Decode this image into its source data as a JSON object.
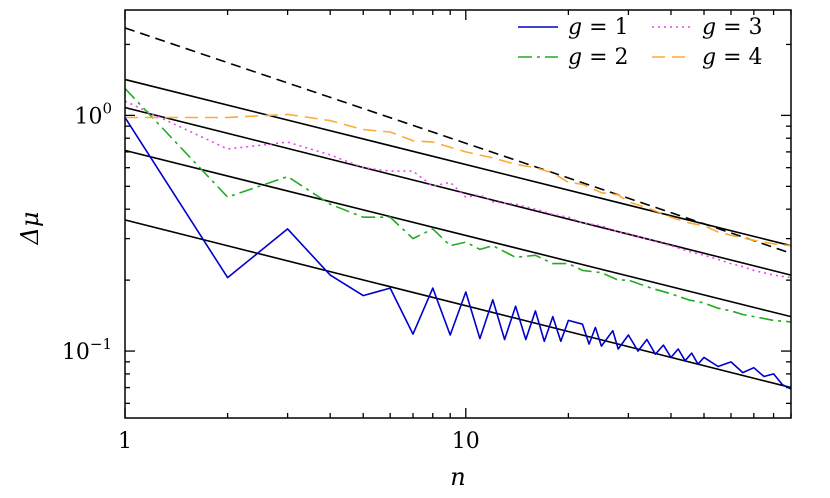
{
  "chart_data": {
    "type": "line",
    "xlabel": "n",
    "ylabel": "Δμ",
    "xscale": "log",
    "yscale": "log",
    "xlim": [
      1,
      90
    ],
    "ylim": [
      0.052,
      2.8
    ],
    "x_ticks": [
      {
        "value": 1,
        "label": "1"
      },
      {
        "value": 10,
        "label": "10"
      }
    ],
    "y_ticks": [
      {
        "value": 0.1,
        "base": "10",
        "exp": "−1"
      },
      {
        "value": 1,
        "base": "10",
        "exp": "0"
      }
    ],
    "grid": false,
    "legend_position": "top-right",
    "series": [
      {
        "name": "g = 1",
        "label_main": "g",
        "label_rest": " = 1",
        "color": "#0000cc",
        "dash": "",
        "points": [
          [
            1,
            0.98
          ],
          [
            2,
            0.205
          ],
          [
            3,
            0.33
          ],
          [
            4,
            0.21
          ],
          [
            5,
            0.172
          ],
          [
            6,
            0.185
          ],
          [
            7,
            0.118
          ],
          [
            8,
            0.185
          ],
          [
            9,
            0.117
          ],
          [
            10,
            0.178
          ],
          [
            11,
            0.113
          ],
          [
            12,
            0.165
          ],
          [
            13,
            0.112
          ],
          [
            14,
            0.155
          ],
          [
            15,
            0.112
          ],
          [
            16,
            0.148
          ],
          [
            17,
            0.11
          ],
          [
            18,
            0.14
          ],
          [
            19,
            0.11
          ],
          [
            20,
            0.135
          ],
          [
            22,
            0.13
          ],
          [
            23,
            0.107
          ],
          [
            24,
            0.126
          ],
          [
            25,
            0.105
          ],
          [
            27,
            0.122
          ],
          [
            28,
            0.102
          ],
          [
            30,
            0.117
          ],
          [
            32,
            0.1
          ],
          [
            34,
            0.112
          ],
          [
            36,
            0.097
          ],
          [
            38,
            0.106
          ],
          [
            40,
            0.094
          ],
          [
            42,
            0.102
          ],
          [
            44,
            0.091
          ],
          [
            46,
            0.098
          ],
          [
            48,
            0.088
          ],
          [
            50,
            0.094
          ],
          [
            55,
            0.086
          ],
          [
            60,
            0.09
          ],
          [
            65,
            0.081
          ],
          [
            70,
            0.085
          ],
          [
            75,
            0.078
          ],
          [
            80,
            0.08
          ],
          [
            85,
            0.072
          ],
          [
            90,
            0.069
          ]
        ]
      },
      {
        "name": "g = 2",
        "label_main": "g",
        "label_rest": " = 2",
        "color": "#22aa22",
        "dash": "14,5,3,5",
        "points": [
          [
            1,
            1.3
          ],
          [
            2,
            0.45
          ],
          [
            3,
            0.55
          ],
          [
            4,
            0.42
          ],
          [
            5,
            0.37
          ],
          [
            6,
            0.37
          ],
          [
            7,
            0.3
          ],
          [
            8,
            0.33
          ],
          [
            9,
            0.28
          ],
          [
            10,
            0.29
          ],
          [
            11,
            0.27
          ],
          [
            12,
            0.28
          ],
          [
            14,
            0.25
          ],
          [
            16,
            0.255
          ],
          [
            18,
            0.235
          ],
          [
            20,
            0.235
          ],
          [
            22,
            0.22
          ],
          [
            25,
            0.215
          ],
          [
            28,
            0.2
          ],
          [
            30,
            0.2
          ],
          [
            35,
            0.185
          ],
          [
            40,
            0.175
          ],
          [
            45,
            0.165
          ],
          [
            50,
            0.16
          ],
          [
            55,
            0.152
          ],
          [
            60,
            0.148
          ],
          [
            65,
            0.143
          ],
          [
            70,
            0.14
          ],
          [
            80,
            0.135
          ],
          [
            90,
            0.133
          ]
        ]
      },
      {
        "name": "g = 3",
        "label_main": "g",
        "label_rest": " = 3",
        "color": "#ee44ee",
        "dash": "2,4",
        "points": [
          [
            1,
            1.15
          ],
          [
            2,
            0.72
          ],
          [
            3,
            0.77
          ],
          [
            4,
            0.68
          ],
          [
            5,
            0.6
          ],
          [
            6,
            0.58
          ],
          [
            7,
            0.58
          ],
          [
            8,
            0.5
          ],
          [
            9,
            0.52
          ],
          [
            10,
            0.45
          ],
          [
            11,
            0.46
          ],
          [
            12,
            0.43
          ],
          [
            14,
            0.42
          ],
          [
            16,
            0.4
          ],
          [
            18,
            0.38
          ],
          [
            20,
            0.37
          ],
          [
            22,
            0.35
          ],
          [
            25,
            0.34
          ],
          [
            28,
            0.32
          ],
          [
            30,
            0.315
          ],
          [
            35,
            0.295
          ],
          [
            40,
            0.28
          ],
          [
            45,
            0.265
          ],
          [
            50,
            0.255
          ],
          [
            55,
            0.245
          ],
          [
            60,
            0.235
          ],
          [
            65,
            0.228
          ],
          [
            70,
            0.22
          ],
          [
            80,
            0.21
          ],
          [
            90,
            0.205
          ]
        ]
      },
      {
        "name": "g = 4",
        "label_main": "g",
        "label_rest": " = 4",
        "color": "#ffaa33",
        "dash": "13,7",
        "points": [
          [
            1,
            0.98
          ],
          [
            2,
            0.98
          ],
          [
            3,
            1.01
          ],
          [
            4,
            0.95
          ],
          [
            5,
            0.87
          ],
          [
            6,
            0.85
          ],
          [
            7,
            0.78
          ],
          [
            8,
            0.77
          ],
          [
            10,
            0.7
          ],
          [
            12,
            0.66
          ],
          [
            14,
            0.62
          ],
          [
            16,
            0.6
          ],
          [
            18,
            0.57
          ],
          [
            20,
            0.52
          ],
          [
            22,
            0.51
          ],
          [
            25,
            0.47
          ],
          [
            28,
            0.46
          ],
          [
            30,
            0.43
          ],
          [
            35,
            0.4
          ],
          [
            40,
            0.37
          ],
          [
            45,
            0.35
          ],
          [
            50,
            0.34
          ],
          [
            55,
            0.32
          ],
          [
            60,
            0.31
          ],
          [
            70,
            0.295
          ],
          [
            80,
            0.285
          ],
          [
            90,
            0.28
          ]
        ]
      }
    ],
    "reference_lines": [
      {
        "from": [
          1,
          2.35
        ],
        "to": [
          90,
          0.26
        ],
        "color": "#000000",
        "dash": "10,6"
      },
      {
        "from": [
          1,
          1.42
        ],
        "to": [
          90,
          0.28
        ],
        "color": "#000000",
        "dash": ""
      },
      {
        "from": [
          1,
          1.08
        ],
        "to": [
          90,
          0.21
        ],
        "color": "#000000",
        "dash": ""
      },
      {
        "from": [
          1,
          0.71
        ],
        "to": [
          90,
          0.14
        ],
        "color": "#000000",
        "dash": ""
      },
      {
        "from": [
          1,
          0.36
        ],
        "to": [
          90,
          0.07
        ],
        "color": "#000000",
        "dash": ""
      }
    ]
  }
}
